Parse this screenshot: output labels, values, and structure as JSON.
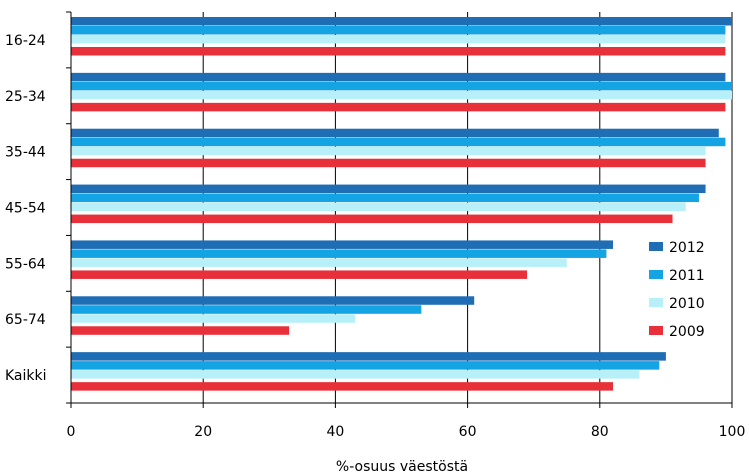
{
  "chart_data": {
    "type": "bar",
    "orientation": "horizontal",
    "title": "",
    "xlabel": "%-osuus väestöstä",
    "ylabel": "",
    "xlim": [
      0,
      100
    ],
    "xticks": [
      0,
      20,
      40,
      60,
      80,
      100
    ],
    "grid": "vertical",
    "legend_position": "right",
    "categories": [
      "16-24",
      "25-34",
      "35-44",
      "45-54",
      "55-64",
      "65-74",
      "Kaikki"
    ],
    "series": [
      {
        "name": "2012",
        "color": "#1f6db5",
        "values": [
          100,
          99,
          98,
          96,
          82,
          61,
          90
        ]
      },
      {
        "name": "2011",
        "color": "#14a3e3",
        "values": [
          99,
          100,
          99,
          95,
          81,
          53,
          89
        ]
      },
      {
        "name": "2010",
        "color": "#b8f0fa",
        "values": [
          99,
          100,
          96,
          93,
          75,
          43,
          86
        ]
      },
      {
        "name": "2009",
        "color": "#e8303a",
        "values": [
          99,
          99,
          96,
          91,
          69,
          33,
          82
        ]
      }
    ]
  }
}
